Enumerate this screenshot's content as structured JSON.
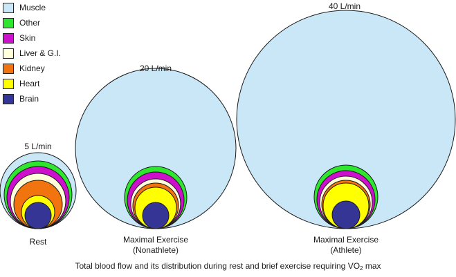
{
  "legend": [
    {
      "label": "Muscle",
      "color": "#c9e7f7"
    },
    {
      "label": "Other",
      "color": "#2ee62e"
    },
    {
      "label": "Skin",
      "color": "#cc10cc"
    },
    {
      "label": "Liver & G.I.",
      "color": "#ffffd9"
    },
    {
      "label": "Kidney",
      "color": "#f2740f"
    },
    {
      "label": "Heart",
      "color": "#ffff00"
    },
    {
      "label": "Brain",
      "color": "#353596"
    }
  ],
  "panels": {
    "rest": {
      "flow": "5 L/min",
      "name": "Rest"
    },
    "nonathlete": {
      "flow": "20 L/min",
      "name_line1": "Maximal Exercise",
      "name_line2": "(Nonathlete)"
    },
    "athlete": {
      "flow": "40 L/min",
      "name_line1": "Maximal Exercise",
      "name_line2": "(Athlete)"
    }
  },
  "caption": {
    "pre": "Total blood flow and its distribution during rest and brief exercise requiring VO",
    "sub": "2",
    "post": " max"
  }
}
